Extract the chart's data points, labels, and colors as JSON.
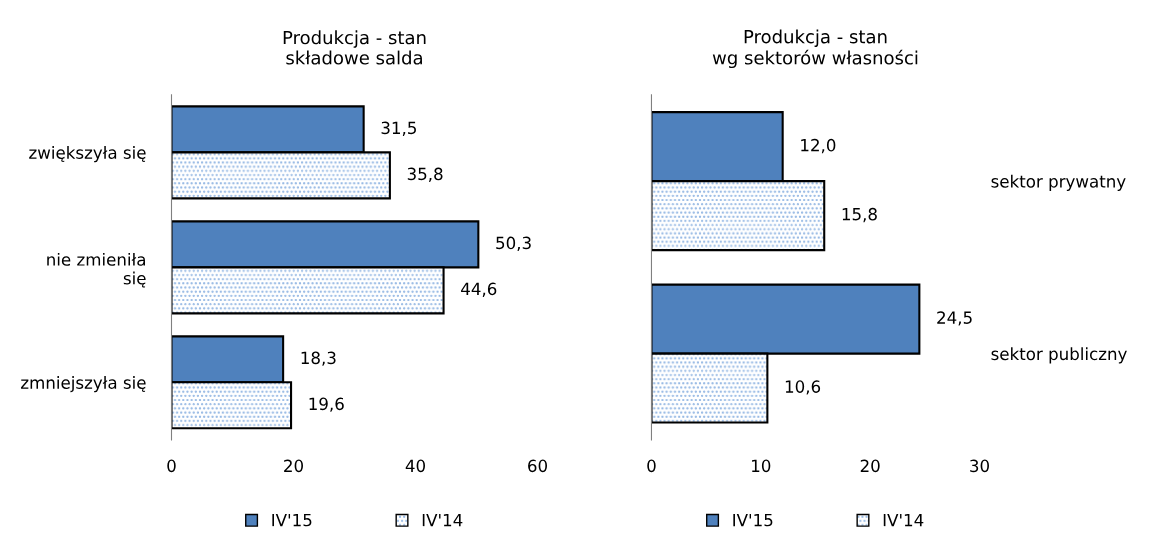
{
  "chart_data": [
    {
      "type": "bar",
      "orientation": "horizontal",
      "title": "Produkcja - stan\nskładowe salda",
      "categories": [
        "zwiększyła się",
        "nie zmieniła\nsię",
        "zmniejszyła się"
      ],
      "series": [
        {
          "name": "IV'15",
          "color": "#4f81bd",
          "values": [
            31.5,
            50.3,
            18.3
          ],
          "value_labels": [
            "31,5",
            "50,3",
            "18,3"
          ]
        },
        {
          "name": "IV'14",
          "color": "#8db3e2",
          "values": [
            35.8,
            44.6,
            19.6
          ],
          "value_labels": [
            "35,8",
            "44,6",
            "19,6"
          ]
        }
      ],
      "xlim": [
        0,
        60
      ],
      "xticks": [
        0,
        20,
        40,
        60
      ],
      "legend": "bottom",
      "grid": false
    },
    {
      "type": "bar",
      "orientation": "horizontal",
      "title": "Produkcja - stan\nwg sektorów własności",
      "categories": [
        "sektor prywatny",
        "sektor publiczny"
      ],
      "series": [
        {
          "name": "IV'15",
          "color": "#4f81bd",
          "values": [
            12.0,
            24.5
          ],
          "value_labels": [
            "12,0",
            "24,5"
          ]
        },
        {
          "name": "IV'14",
          "color": "#8db3e2",
          "values": [
            15.8,
            10.6
          ],
          "value_labels": [
            "15,8",
            "10,6"
          ]
        }
      ],
      "xlim": [
        0,
        30
      ],
      "xticks": [
        0,
        10,
        20,
        30
      ],
      "legend": "bottom",
      "grid": false
    }
  ]
}
